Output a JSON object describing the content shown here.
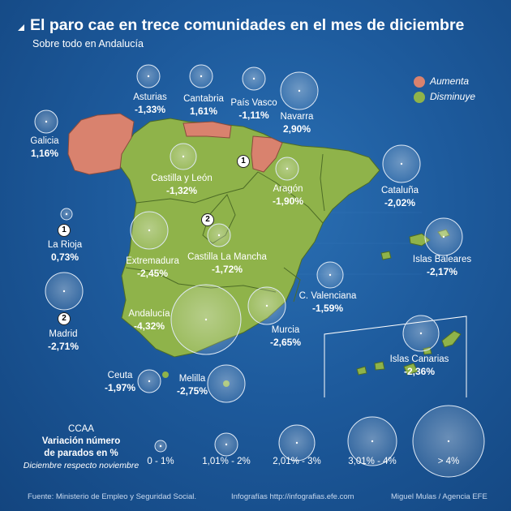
{
  "title": "El paro cae en trece comunidades en el mes de diciembre",
  "subtitle": "Sobre todo en Andalucía",
  "legend": {
    "increase": {
      "label": "Aumenta",
      "color": "#d9826e"
    },
    "decrease": {
      "label": "Disminuye",
      "color": "#8fb34a"
    }
  },
  "regions": [
    {
      "name": "Asturias",
      "value": "-1,33%"
    },
    {
      "name": "Cantabria",
      "value": "1,61%"
    },
    {
      "name": "País Vasco",
      "value": "-1,11%"
    },
    {
      "name": "Navarra",
      "value": "2,90%"
    },
    {
      "name": "Galicia",
      "value": "1,16%"
    },
    {
      "name": "Castilla y León",
      "value": "-1,32%"
    },
    {
      "name": "Aragón",
      "value": "-1,90%"
    },
    {
      "name": "Cataluña",
      "value": "-2,02%"
    },
    {
      "name": "La Rioja",
      "value": "0,73%"
    },
    {
      "name": "Extremadura",
      "value": "-2,45%"
    },
    {
      "name": "Castilla La Mancha",
      "value": "-1,72%"
    },
    {
      "name": "Islas Baleares",
      "value": "-2,17%"
    },
    {
      "name": "C. Valenciana",
      "value": "-1,59%"
    },
    {
      "name": "Madrid",
      "value": "-2,71%"
    },
    {
      "name": "Andalucía",
      "value": "-4,32%"
    },
    {
      "name": "Murcia",
      "value": "-2,65%"
    },
    {
      "name": "Islas Canarias",
      "value": "-2,36%"
    },
    {
      "name": "Ceuta",
      "value": "-1,97%"
    },
    {
      "name": "Melilla",
      "value": "-2,75%"
    }
  ],
  "markers": {
    "rioja": "1",
    "madrid": "2"
  },
  "scale": {
    "title1": "CCAA",
    "title2": "Variación número",
    "title3": "de parados en %",
    "title4": "Diciembre respecto noviembre",
    "items": [
      "0 - 1%",
      "1,01% - 2%",
      "2,01% - 3%",
      "3,01% - 4%",
      "> 4%"
    ]
  },
  "footer": {
    "source": "Fuente: Ministerio de Empleo y Seguridad Social.",
    "web": "Infografías http://infografias.efe.com",
    "author": "Miguel Mulas / Agencia EFE"
  }
}
